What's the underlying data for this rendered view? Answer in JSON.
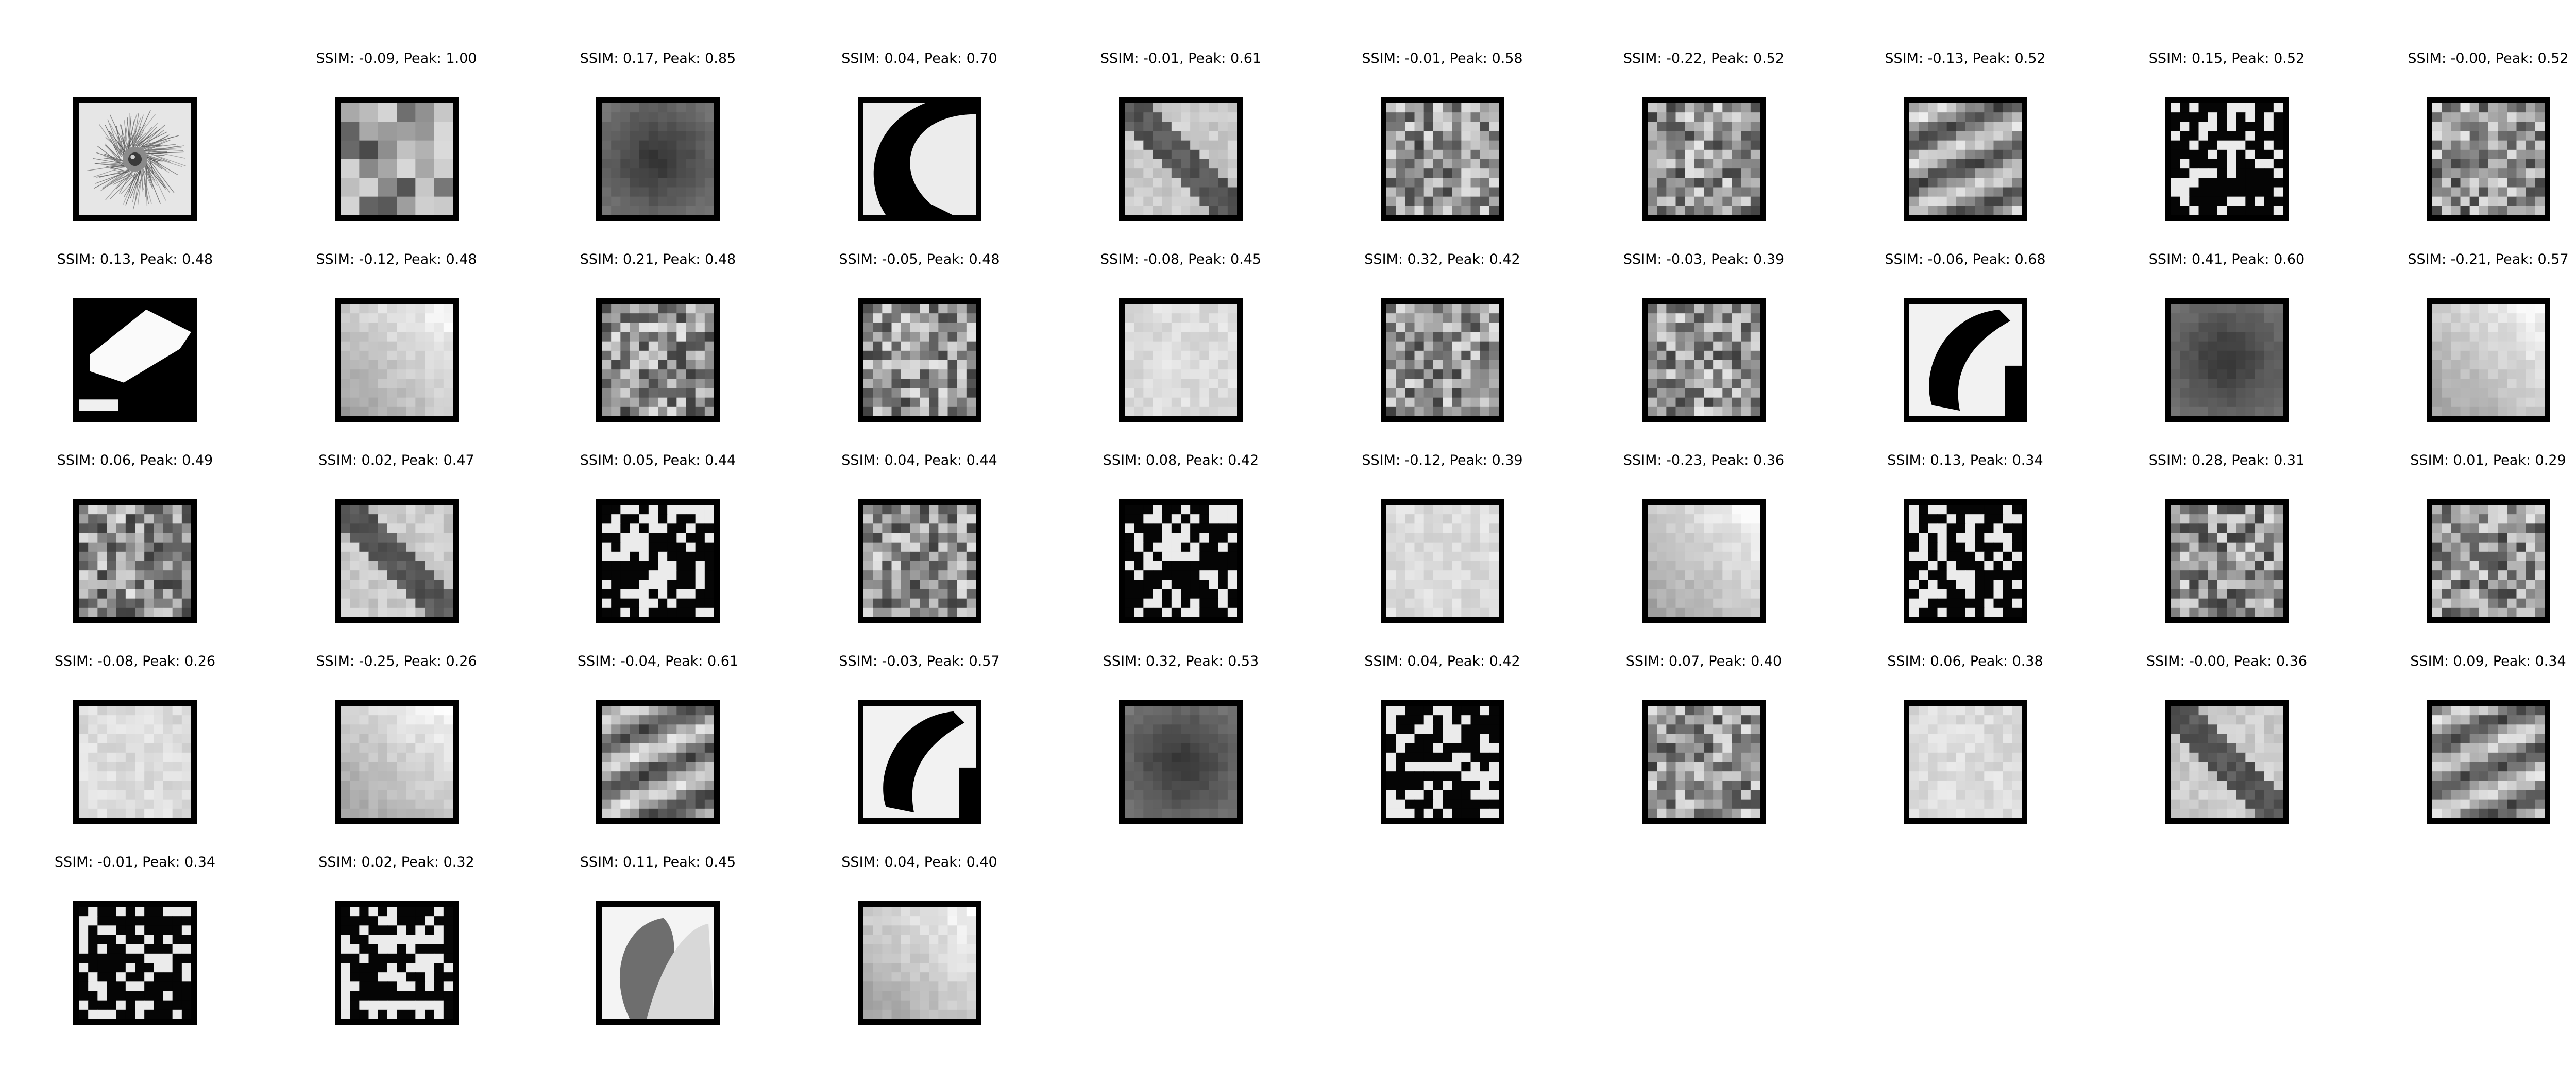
{
  "figure": {
    "reference": {
      "label": "",
      "thumbnail": "reference-patch-icon"
    },
    "matches": [
      {
        "label": "SSIM: -0.09, Peak: 1.00",
        "ssim": -0.09,
        "peak": 1.0,
        "thumbnail": "mosaic-patch-icon"
      },
      {
        "label": "SSIM: 0.17, Peak: 0.85",
        "ssim": 0.17,
        "peak": 0.85,
        "thumbnail": "dark-blob-patch-icon"
      },
      {
        "label": "SSIM: 0.04, Peak: 0.70",
        "ssim": 0.04,
        "peak": 0.7,
        "thumbnail": "crescent-patch-icon"
      },
      {
        "label": "SSIM: -0.01, Peak: 0.61",
        "ssim": -0.01,
        "peak": 0.61,
        "thumbnail": "diagonal-band-patch-icon"
      },
      {
        "label": "SSIM: -0.01, Peak: 0.58",
        "ssim": -0.01,
        "peak": 0.58,
        "thumbnail": "texture-patch-icon"
      },
      {
        "label": "SSIM: -0.22, Peak: 0.52",
        "ssim": -0.22,
        "peak": 0.52,
        "thumbnail": "texture-patch-icon"
      },
      {
        "label": "SSIM: -0.13, Peak: 0.52",
        "ssim": -0.13,
        "peak": 0.52,
        "thumbnail": "stripes-patch-icon"
      },
      {
        "label": "SSIM: 0.15, Peak: 0.52",
        "ssim": 0.15,
        "peak": 0.52,
        "thumbnail": "binary-patch-icon"
      },
      {
        "label": "SSIM: -0.00, Peak: 0.52",
        "ssim": -0.0,
        "peak": 0.52,
        "thumbnail": "texture-patch-icon"
      },
      {
        "label": "SSIM: 0.13, Peak: 0.48",
        "ssim": 0.13,
        "peak": 0.48,
        "thumbnail": "binary-diagonal-patch-icon"
      },
      {
        "label": "SSIM: -0.12, Peak: 0.48",
        "ssim": -0.12,
        "peak": 0.48,
        "thumbnail": "light-gradient-patch-icon"
      },
      {
        "label": "SSIM: 0.21, Peak: 0.48",
        "ssim": 0.21,
        "peak": 0.48,
        "thumbnail": "texture-patch-icon"
      },
      {
        "label": "SSIM: -0.05, Peak: 0.48",
        "ssim": -0.05,
        "peak": 0.48,
        "thumbnail": "texture-patch-icon"
      },
      {
        "label": "SSIM: -0.08, Peak: 0.45",
        "ssim": -0.08,
        "peak": 0.45,
        "thumbnail": "light-patch-icon"
      },
      {
        "label": "SSIM: 0.32, Peak: 0.42",
        "ssim": 0.32,
        "peak": 0.42,
        "thumbnail": "texture-patch-icon"
      },
      {
        "label": "SSIM: -0.03, Peak: 0.39",
        "ssim": -0.03,
        "peak": 0.39,
        "thumbnail": "texture-patch-icon"
      },
      {
        "label": "SSIM: -0.06, Peak: 0.68",
        "ssim": -0.06,
        "peak": 0.68,
        "thumbnail": "curve-patch-icon"
      },
      {
        "label": "SSIM: 0.41, Peak: 0.60",
        "ssim": 0.41,
        "peak": 0.6,
        "thumbnail": "dark-blob-patch-icon"
      },
      {
        "label": "SSIM: -0.21, Peak: 0.57",
        "ssim": -0.21,
        "peak": 0.57,
        "thumbnail": "light-gradient-patch-icon"
      },
      {
        "label": "SSIM: 0.06, Peak: 0.49",
        "ssim": 0.06,
        "peak": 0.49,
        "thumbnail": "texture-patch-icon"
      },
      {
        "label": "SSIM: 0.02, Peak: 0.47",
        "ssim": 0.02,
        "peak": 0.47,
        "thumbnail": "diagonal-band-patch-icon"
      },
      {
        "label": "SSIM: 0.05, Peak: 0.44",
        "ssim": 0.05,
        "peak": 0.44,
        "thumbnail": "binary-patch-icon"
      },
      {
        "label": "SSIM: 0.04, Peak: 0.44",
        "ssim": 0.04,
        "peak": 0.44,
        "thumbnail": "texture-patch-icon"
      },
      {
        "label": "SSIM: 0.08, Peak: 0.42",
        "ssim": 0.08,
        "peak": 0.42,
        "thumbnail": "binary-patch-icon"
      },
      {
        "label": "SSIM: -0.12, Peak: 0.39",
        "ssim": -0.12,
        "peak": 0.39,
        "thumbnail": "light-patch-icon"
      },
      {
        "label": "SSIM: -0.23, Peak: 0.36",
        "ssim": -0.23,
        "peak": 0.36,
        "thumbnail": "light-gradient-patch-icon"
      },
      {
        "label": "SSIM: 0.13, Peak: 0.34",
        "ssim": 0.13,
        "peak": 0.34,
        "thumbnail": "binary-patch-icon"
      },
      {
        "label": "SSIM: 0.28, Peak: 0.31",
        "ssim": 0.28,
        "peak": 0.31,
        "thumbnail": "texture-patch-icon"
      },
      {
        "label": "SSIM: 0.01, Peak: 0.29",
        "ssim": 0.01,
        "peak": 0.29,
        "thumbnail": "texture-patch-icon"
      },
      {
        "label": "SSIM: -0.08, Peak: 0.26",
        "ssim": -0.08,
        "peak": 0.26,
        "thumbnail": "light-patch-icon"
      },
      {
        "label": "SSIM: -0.25, Peak: 0.26",
        "ssim": -0.25,
        "peak": 0.26,
        "thumbnail": "light-gradient-patch-icon"
      },
      {
        "label": "SSIM: -0.04, Peak: 0.61",
        "ssim": -0.04,
        "peak": 0.61,
        "thumbnail": "stripes-patch-icon"
      },
      {
        "label": "SSIM: -0.03, Peak: 0.57",
        "ssim": -0.03,
        "peak": 0.57,
        "thumbnail": "curve-patch-icon"
      },
      {
        "label": "SSIM: 0.32, Peak: 0.53",
        "ssim": 0.32,
        "peak": 0.53,
        "thumbnail": "dark-blob-patch-icon"
      },
      {
        "label": "SSIM: 0.04, Peak: 0.42",
        "ssim": 0.04,
        "peak": 0.42,
        "thumbnail": "binary-patch-icon"
      },
      {
        "label": "SSIM: 0.07, Peak: 0.40",
        "ssim": 0.07,
        "peak": 0.4,
        "thumbnail": "texture-patch-icon"
      },
      {
        "label": "SSIM: 0.06, Peak: 0.38",
        "ssim": 0.06,
        "peak": 0.38,
        "thumbnail": "light-patch-icon"
      },
      {
        "label": "SSIM: -0.00, Peak: 0.36",
        "ssim": -0.0,
        "peak": 0.36,
        "thumbnail": "diagonal-band-patch-icon"
      },
      {
        "label": "SSIM: 0.09, Peak: 0.34",
        "ssim": 0.09,
        "peak": 0.34,
        "thumbnail": "stripes-patch-icon"
      },
      {
        "label": "SSIM: -0.01, Peak: 0.34",
        "ssim": -0.01,
        "peak": 0.34,
        "thumbnail": "binary-patch-icon"
      },
      {
        "label": "SSIM: 0.02, Peak: 0.32",
        "ssim": 0.02,
        "peak": 0.32,
        "thumbnail": "binary-patch-icon"
      },
      {
        "label": "SSIM: 0.11, Peak: 0.45",
        "ssim": 0.11,
        "peak": 0.45,
        "thumbnail": "petal-patch-icon"
      },
      {
        "label": "SSIM: 0.04, Peak: 0.40",
        "ssim": 0.04,
        "peak": 0.4,
        "thumbnail": "light-gradient-patch-icon"
      }
    ]
  }
}
